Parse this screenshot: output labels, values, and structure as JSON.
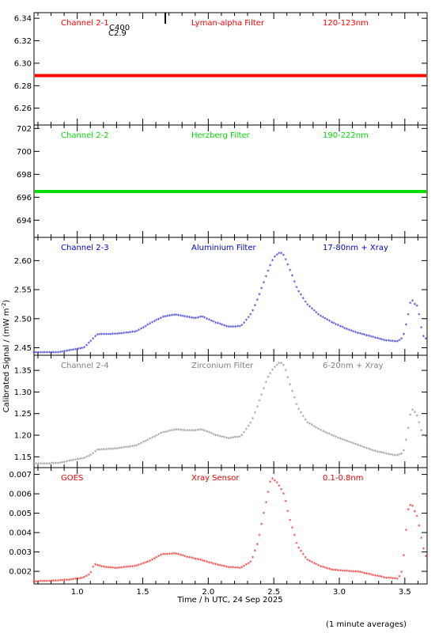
{
  "y_axis_label_main": "Calibrated Signal / (mW m",
  "y_axis_label_sup": "-2",
  "y_axis_label_end": ")",
  "x_axis_label": "Time / h UTC, 24 Sep 2025",
  "footnote": "(1 minute averages)",
  "flare_annotation": {
    "line1": "C400",
    "line2": "C2.9"
  },
  "chart_data": [
    {
      "type": "scatter",
      "panel": "channel-2-1",
      "channel": "Channel 2-1",
      "filter": "Lyman-alpha Filter",
      "band": "120-123nm",
      "color": "#ff0000",
      "ylim": [
        6.245,
        6.345
      ],
      "yticks": [
        6.26,
        6.28,
        6.3,
        6.32,
        6.34
      ],
      "tick_decimals": 2,
      "x": [
        0.67,
        3.67
      ],
      "y": [
        6.289,
        6.289
      ],
      "style": "flat"
    },
    {
      "type": "scatter",
      "panel": "channel-2-2",
      "channel": "Channel 2-2",
      "filter": "Herzberg Filter",
      "band": "190-222nm",
      "color": "#00dd00",
      "ylim": [
        692.5,
        702.3
      ],
      "yticks": [
        694,
        696,
        698,
        700,
        702
      ],
      "tick_decimals": 0,
      "x": [
        0.67,
        3.67
      ],
      "y": [
        696.5,
        696.5
      ],
      "style": "flat"
    },
    {
      "type": "scatter",
      "panel": "channel-2-3",
      "channel": "Channel 2-3",
      "filter": "Aluminium Filter",
      "band": "17-80nm + Xray",
      "color": "#0000cc",
      "ylim": [
        2.437,
        2.64
      ],
      "yticks": [
        2.45,
        2.5,
        2.55,
        2.6
      ],
      "tick_decimals": 2,
      "x": [
        0.67,
        0.85,
        0.95,
        1.05,
        1.1,
        1.15,
        1.3,
        1.45,
        1.55,
        1.65,
        1.75,
        1.85,
        1.9,
        1.95,
        2.05,
        2.15,
        2.25,
        2.33,
        2.38,
        2.45,
        2.5,
        2.55,
        2.58,
        2.62,
        2.68,
        2.75,
        2.85,
        2.95,
        3.05,
        3.15,
        3.25,
        3.35,
        3.44,
        3.47,
        3.49,
        3.5,
        3.52,
        3.55,
        3.57,
        3.6,
        3.62,
        3.64,
        3.67
      ],
      "y": [
        2.441,
        2.441,
        2.445,
        2.449,
        2.46,
        2.472,
        2.473,
        2.477,
        2.49,
        2.502,
        2.506,
        2.502,
        2.5,
        2.503,
        2.493,
        2.485,
        2.486,
        2.508,
        2.535,
        2.578,
        2.605,
        2.614,
        2.607,
        2.585,
        2.55,
        2.525,
        2.505,
        2.492,
        2.482,
        2.474,
        2.468,
        2.462,
        2.46,
        2.463,
        2.47,
        2.48,
        2.5,
        2.535,
        2.525,
        2.52,
        2.49,
        2.47,
        2.462
      ],
      "style": "line"
    },
    {
      "type": "scatter",
      "panel": "channel-2-4",
      "channel": "Channel 2-4",
      "filter": "Zirconium Filter",
      "band": "6-20nm + Xray",
      "color": "#808080",
      "ylim": [
        1.125,
        1.385
      ],
      "yticks": [
        1.15,
        1.2,
        1.25,
        1.3,
        1.35
      ],
      "tick_decimals": 2,
      "x": [
        0.67,
        0.85,
        0.95,
        1.05,
        1.1,
        1.15,
        1.3,
        1.45,
        1.55,
        1.65,
        1.75,
        1.85,
        1.9,
        1.95,
        2.05,
        2.15,
        2.25,
        2.33,
        2.38,
        2.45,
        2.5,
        2.55,
        2.58,
        2.62,
        2.68,
        2.75,
        2.85,
        2.95,
        3.05,
        3.15,
        3.25,
        3.35,
        3.44,
        3.47,
        3.49,
        3.5,
        3.52,
        3.55,
        3.57,
        3.6,
        3.62,
        3.64,
        3.67
      ],
      "y": [
        1.133,
        1.134,
        1.14,
        1.146,
        1.152,
        1.165,
        1.168,
        1.175,
        1.19,
        1.205,
        1.212,
        1.21,
        1.21,
        1.212,
        1.2,
        1.192,
        1.196,
        1.23,
        1.27,
        1.33,
        1.355,
        1.368,
        1.36,
        1.32,
        1.265,
        1.23,
        1.212,
        1.198,
        1.186,
        1.175,
        1.164,
        1.157,
        1.152,
        1.155,
        1.16,
        1.175,
        1.205,
        1.26,
        1.255,
        1.24,
        1.215,
        1.2,
        1.195
      ],
      "style": "line"
    },
    {
      "type": "scatter",
      "panel": "goes",
      "channel": "GOES",
      "filter": "Xray Sensor",
      "band": "0.1-0.8nm",
      "color": "#ee0000",
      "ylim": [
        0.00135,
        0.00735
      ],
      "yticks": [
        0.002,
        0.003,
        0.004,
        0.005,
        0.006,
        0.007
      ],
      "tick_decimals": 3,
      "x": [
        0.67,
        0.85,
        0.95,
        1.05,
        1.1,
        1.13,
        1.2,
        1.3,
        1.45,
        1.55,
        1.65,
        1.75,
        1.85,
        1.95,
        2.05,
        2.15,
        2.25,
        2.33,
        2.38,
        2.43,
        2.48,
        2.52,
        2.55,
        2.58,
        2.62,
        2.68,
        2.75,
        2.85,
        2.95,
        3.05,
        3.15,
        3.25,
        3.35,
        3.45,
        3.48,
        3.5,
        3.52,
        3.55,
        3.58,
        3.6,
        3.62,
        3.64,
        3.67
      ],
      "y": [
        0.00145,
        0.0015,
        0.00155,
        0.00165,
        0.00185,
        0.00235,
        0.0022,
        0.00215,
        0.00225,
        0.0025,
        0.00285,
        0.0029,
        0.0027,
        0.00255,
        0.00235,
        0.0022,
        0.00215,
        0.0025,
        0.0035,
        0.0052,
        0.0068,
        0.0066,
        0.0063,
        0.0059,
        0.0047,
        0.0033,
        0.0026,
        0.00225,
        0.00205,
        0.002,
        0.00195,
        0.0018,
        0.00165,
        0.0016,
        0.002,
        0.0033,
        0.0051,
        0.0055,
        0.005,
        0.0047,
        0.0039,
        0.0032,
        0.0025
      ],
      "style": "line"
    }
  ],
  "x_axis": {
    "xlim": [
      0.67,
      3.67
    ],
    "ticks": [
      1.0,
      1.5,
      2.0,
      2.5,
      3.0,
      3.5
    ],
    "tick_labels": [
      "1.0",
      "1.5",
      "2.0",
      "2.5",
      "3.0",
      "3.5"
    ]
  }
}
